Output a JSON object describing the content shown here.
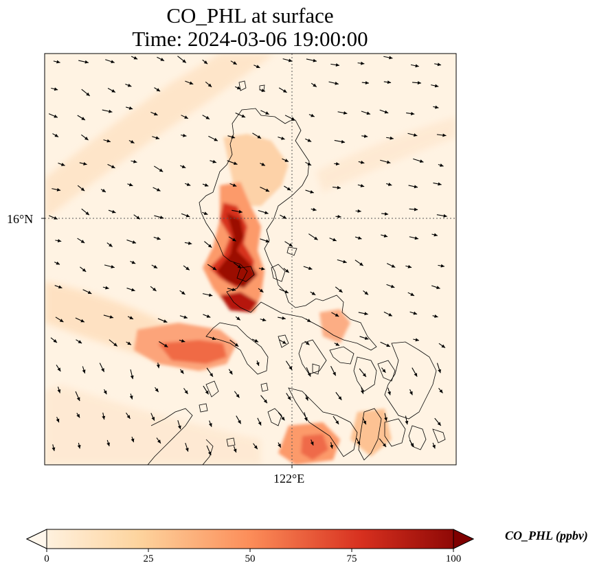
{
  "title": {
    "line1": "CO_PHL at surface",
    "line2": "Time: 2024-03-06 19:00:00"
  },
  "axes": {
    "lat_label": "16°N",
    "lon_label": "122°E"
  },
  "colorbar": {
    "label": "CO_PHL (ppbv)",
    "ticks": [
      "0",
      "25",
      "50",
      "75",
      "100"
    ],
    "tick_values": [
      0,
      25,
      50,
      75,
      100
    ],
    "min": 0,
    "max": 100,
    "colormap": "OrRd",
    "extend": "both"
  },
  "colors": {
    "low": "#fff7ec",
    "mid": "#fc8d59",
    "high": "#7f0000"
  }
}
